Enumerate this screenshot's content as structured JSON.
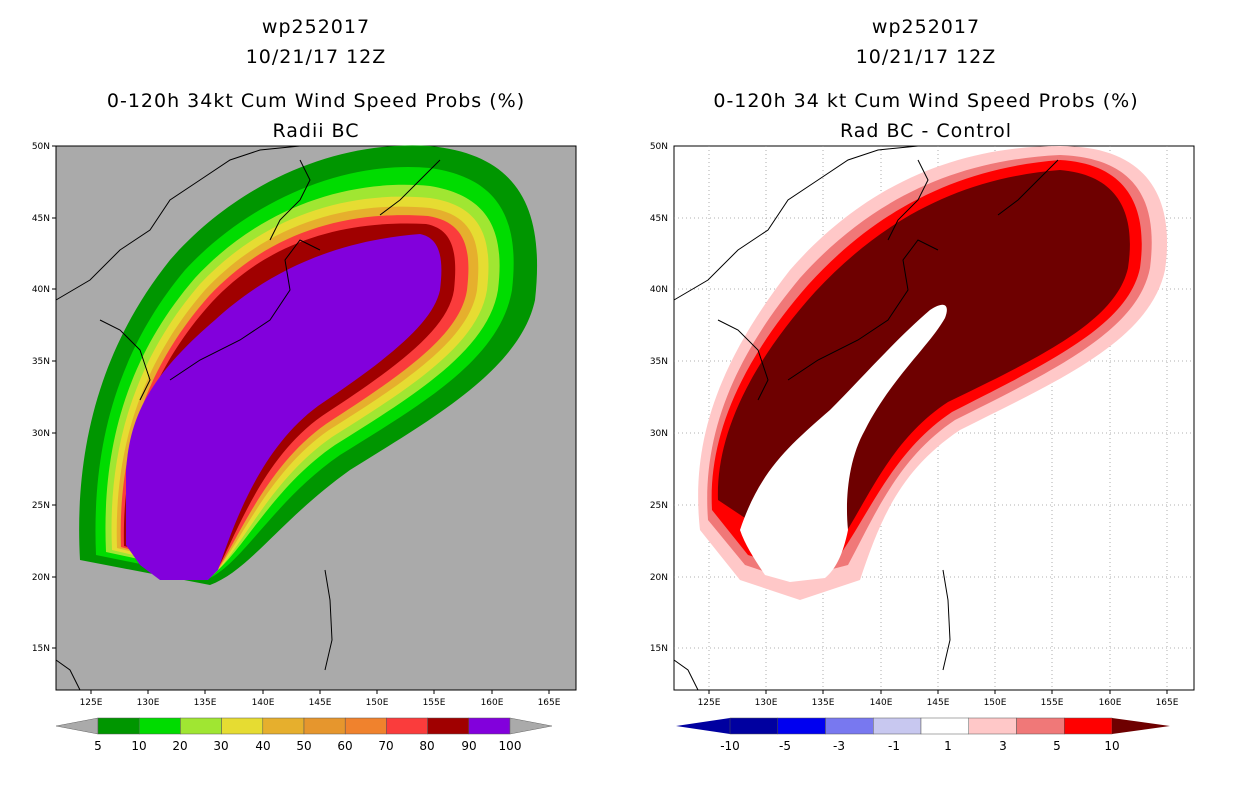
{
  "left": {
    "storm": "wp252017",
    "datetime": "10/21/17 12Z",
    "subtitle": "0-120h 34kt Cum Wind Speed Probs (%)",
    "subtitle2": "Radii BC",
    "colorbar": {
      "colors": [
        "#009600",
        "#00dc00",
        "#a0e632",
        "#e6dc32",
        "#e6af2d",
        "#e6962d",
        "#f0822d",
        "#fa3c3c",
        "#a00000",
        "#8200dc"
      ],
      "labels": [
        "5",
        "10",
        "20",
        "30",
        "40",
        "50",
        "60",
        "70",
        "80",
        "90",
        "100"
      ],
      "end_color": "#aaaaaa"
    }
  },
  "right": {
    "storm": "wp252017",
    "datetime": "10/21/17 12Z",
    "subtitle": "0-120h 34 kt Cum Wind Speed Probs (%)",
    "subtitle2": "Rad BC - Control",
    "colorbar": {
      "colors": [
        "#0000a0",
        "#0000f0",
        "#7878f0",
        "#c8c8f0",
        "#ffffff",
        "#ffc8c8",
        "#f07878",
        "#ff0000"
      ],
      "labels": [
        "-10",
        "-5",
        "-3",
        "-1",
        "1",
        "3",
        "5",
        "10"
      ],
      "left_end": "#0000a0",
      "right_end": "#6e0000"
    }
  },
  "axes": {
    "lon_labels": [
      "125E",
      "130E",
      "135E",
      "140E",
      "145E",
      "150E",
      "155E",
      "160E",
      "165E"
    ],
    "lat_labels": [
      "15N",
      "20N",
      "25N",
      "30N",
      "35N",
      "40N",
      "45N",
      "50N"
    ]
  }
}
